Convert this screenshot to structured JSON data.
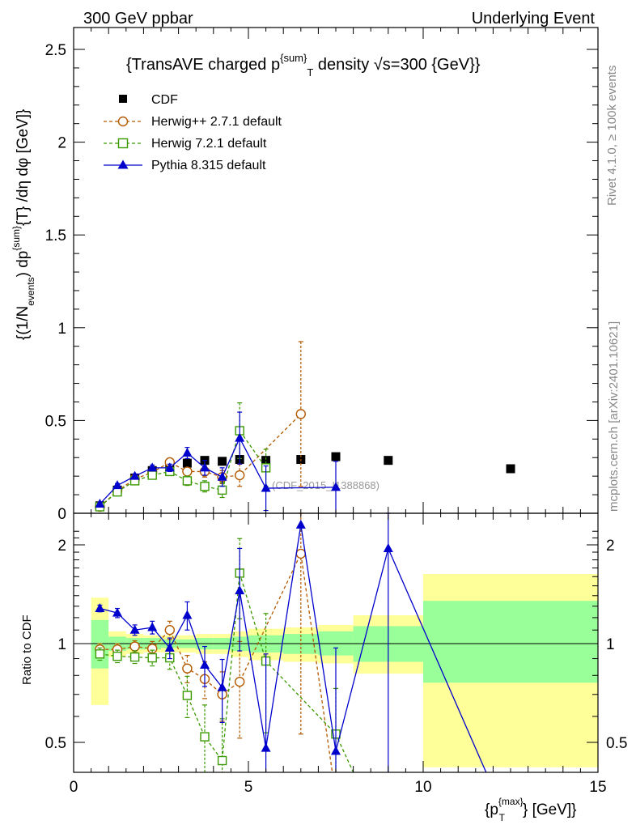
{
  "header": {
    "left": "300 GeV ppbar",
    "right": "Underlying Event"
  },
  "side_labels": {
    "rivet": "Rivet 4.1.0, ≥ 100k events",
    "mcplots": "mcplots.cern.ch [arXiv:2401.10621]"
  },
  "chart_data": [
    {
      "type": "scatter",
      "panel": "main",
      "title_main": "{TransAVE charged p",
      "title_sup": "{sum}",
      "title_sub": "T",
      "title_rest": " density √s=300 {GeV}}",
      "ylabel": "{(1/N_{events}) dp^{sum}_{T} /dη dφ [GeV]}",
      "ylabel_parts": {
        "a": "{(1/N",
        "b_sub": "events",
        "c": ") dp",
        "d_sup": "{sum}",
        "e": "{T} /dη  dφ [GeV]}"
      },
      "xlim": [
        0,
        15
      ],
      "ylim": [
        0,
        2.6
      ],
      "yticks": [
        0,
        0.5,
        1,
        1.5,
        2,
        2.5
      ],
      "ytick_labels": [
        "0",
        "0.5",
        "1",
        "1.5",
        "2",
        "2.5"
      ],
      "watermark": "(CDF_2015_I1388868)",
      "legend": [
        "CDF",
        "Herwig++ 2.7.1 default",
        "Herwig 7.2.1 default",
        "Pythia 8.315 default"
      ],
      "series": [
        {
          "name": "CDF",
          "color": "#000000",
          "marker": "square-filled",
          "x": [
            0.75,
            1.25,
            1.75,
            2.25,
            2.75,
            3.25,
            3.75,
            4.25,
            4.75,
            5.5,
            6.5,
            7.5,
            9.0,
            12.5
          ],
          "y": [
            0.04,
            0.125,
            0.19,
            0.23,
            0.25,
            0.27,
            0.285,
            0.28,
            0.29,
            0.285,
            0.29,
            0.305,
            0.285,
            0.24
          ],
          "err": [
            0,
            0,
            0,
            0,
            0,
            0,
            0,
            0,
            0,
            0,
            0,
            0,
            0,
            0
          ]
        },
        {
          "name": "Herwig++ 2.7.1 default",
          "color": "#b35900",
          "marker": "circle-open",
          "x": [
            0.75,
            1.25,
            1.75,
            2.25,
            2.75,
            3.25,
            3.75,
            4.25,
            4.75,
            6.5
          ],
          "y": [
            0.035,
            0.12,
            0.185,
            0.22,
            0.275,
            0.225,
            0.225,
            0.195,
            0.205,
            0.535
          ],
          "err": [
            0.005,
            0.01,
            0.01,
            0.012,
            0.018,
            0.02,
            0.03,
            0.035,
            0.06,
            0.39
          ]
        },
        {
          "name": "Herwig 7.2.1 default",
          "color": "#3a9900",
          "marker": "square-open",
          "x": [
            0.75,
            1.25,
            1.75,
            2.25,
            2.75,
            3.25,
            3.75,
            4.25,
            4.75,
            5.5
          ],
          "y": [
            0.035,
            0.115,
            0.175,
            0.205,
            0.225,
            0.175,
            0.145,
            0.125,
            0.445,
            0.245
          ],
          "err": [
            0.005,
            0.01,
            0.01,
            0.012,
            0.018,
            0.025,
            0.03,
            0.04,
            0.15,
            0.1
          ]
        },
        {
          "name": "Pythia 8.315 default",
          "color": "#0000cc",
          "marker": "triangle-filled",
          "x": [
            0.75,
            1.25,
            1.75,
            2.25,
            2.75,
            3.25,
            3.75,
            4.25,
            4.75,
            5.5,
            7.5
          ],
          "y": [
            0.05,
            0.15,
            0.2,
            0.245,
            0.245,
            0.325,
            0.245,
            0.195,
            0.405,
            0.135,
            0.14
          ],
          "err": [
            0.005,
            0.01,
            0.012,
            0.015,
            0.02,
            0.03,
            0.04,
            0.05,
            0.14,
            0.12,
            0.14
          ]
        }
      ]
    },
    {
      "type": "scatter",
      "panel": "ratio",
      "ylabel": "Ratio to CDF",
      "xlabel": "{p_T^{max}} [GeV]}",
      "xlabel_parts": {
        "a": "{p",
        "b_sup": "{max}",
        "c_sub": "T",
        "d": "} [GeV]}"
      },
      "xlim": [
        0,
        15
      ],
      "ylim": [
        0.35,
        2.3
      ],
      "xticks": [
        0,
        5,
        10,
        15
      ],
      "xtick_labels": [
        "0",
        "5",
        "10",
        "15"
      ],
      "yticks": [
        0.5,
        1,
        2
      ],
      "ytick_labels": [
        "0.5",
        "1",
        "2"
      ],
      "bands": {
        "edges": [
          0.5,
          1.0,
          1.5,
          2.0,
          2.5,
          3.0,
          3.5,
          4.0,
          4.5,
          5.0,
          6.0,
          7.0,
          8.0,
          10.0,
          15.0
        ],
        "yellow": [
          [
            0.65,
            1.38
          ],
          [
            0.91,
            1.09
          ],
          [
            0.93,
            1.07
          ],
          [
            0.94,
            1.06
          ],
          [
            0.94,
            1.06
          ],
          [
            0.94,
            1.06
          ],
          [
            0.93,
            1.07
          ],
          [
            0.93,
            1.07
          ],
          [
            0.91,
            1.09
          ],
          [
            0.89,
            1.11
          ],
          [
            0.88,
            1.12
          ],
          [
            0.87,
            1.14
          ],
          [
            0.81,
            1.22
          ],
          [
            0.42,
            1.63
          ]
        ],
        "green": [
          [
            0.84,
            1.18
          ],
          [
            0.95,
            1.05
          ],
          [
            0.96,
            1.04
          ],
          [
            0.96,
            1.04
          ],
          [
            0.97,
            1.03
          ],
          [
            0.97,
            1.03
          ],
          [
            0.96,
            1.04
          ],
          [
            0.96,
            1.04
          ],
          [
            0.95,
            1.05
          ],
          [
            0.94,
            1.06
          ],
          [
            0.93,
            1.07
          ],
          [
            0.92,
            1.09
          ],
          [
            0.88,
            1.13
          ],
          [
            0.76,
            1.35
          ]
        ]
      },
      "series": [
        {
          "name": "Herwig++ 2.7.1 default",
          "color": "#b35900",
          "marker": "circle-open",
          "x": [
            0.75,
            1.25,
            1.75,
            2.25,
            2.75,
            3.25,
            3.75,
            4.25,
            4.75,
            6.5
          ],
          "y": [
            0.96,
            0.96,
            0.98,
            0.965,
            1.1,
            0.84,
            0.78,
            0.7,
            0.765,
            1.88
          ],
          "err": [
            0.04,
            0.04,
            0.04,
            0.05,
            0.07,
            0.08,
            0.1,
            0.12,
            0.25,
            1.35
          ],
          "continue_to": [
            7.4,
            0.35
          ]
        },
        {
          "name": "Herwig 7.2.1 default",
          "color": "#3a9900",
          "marker": "square-open",
          "x": [
            0.75,
            1.25,
            1.75,
            2.25,
            2.75,
            3.25,
            3.75,
            4.25,
            4.75,
            5.5,
            7.5
          ],
          "y": [
            0.93,
            0.915,
            0.91,
            0.905,
            0.905,
            0.695,
            0.52,
            0.44,
            1.64,
            0.885,
            0.53
          ],
          "err": [
            0.04,
            0.04,
            0.04,
            0.05,
            0.07,
            0.1,
            0.13,
            0.15,
            0.45,
            0.35,
            0.2
          ],
          "continue_to": [
            8.0,
            0.35
          ]
        },
        {
          "name": "Pythia 8.315 default",
          "color": "#0000cc",
          "marker": "triangle-filled",
          "x": [
            0.75,
            1.25,
            1.75,
            2.25,
            2.75,
            3.25,
            3.75,
            4.25,
            4.75,
            5.5,
            6.5,
            7.5,
            9.0
          ],
          "y": [
            1.28,
            1.24,
            1.1,
            1.12,
            0.97,
            1.22,
            0.86,
            0.735,
            1.45,
            0.48,
            2.3,
            0.47,
            1.95
          ],
          "err": [
            0.03,
            0.04,
            0.04,
            0.05,
            0.07,
            0.12,
            0.12,
            0.16,
            0.5,
            0.45,
            0,
            0.5,
            1.6
          ],
          "continue_to": [
            11.8,
            0.35
          ]
        }
      ]
    }
  ]
}
